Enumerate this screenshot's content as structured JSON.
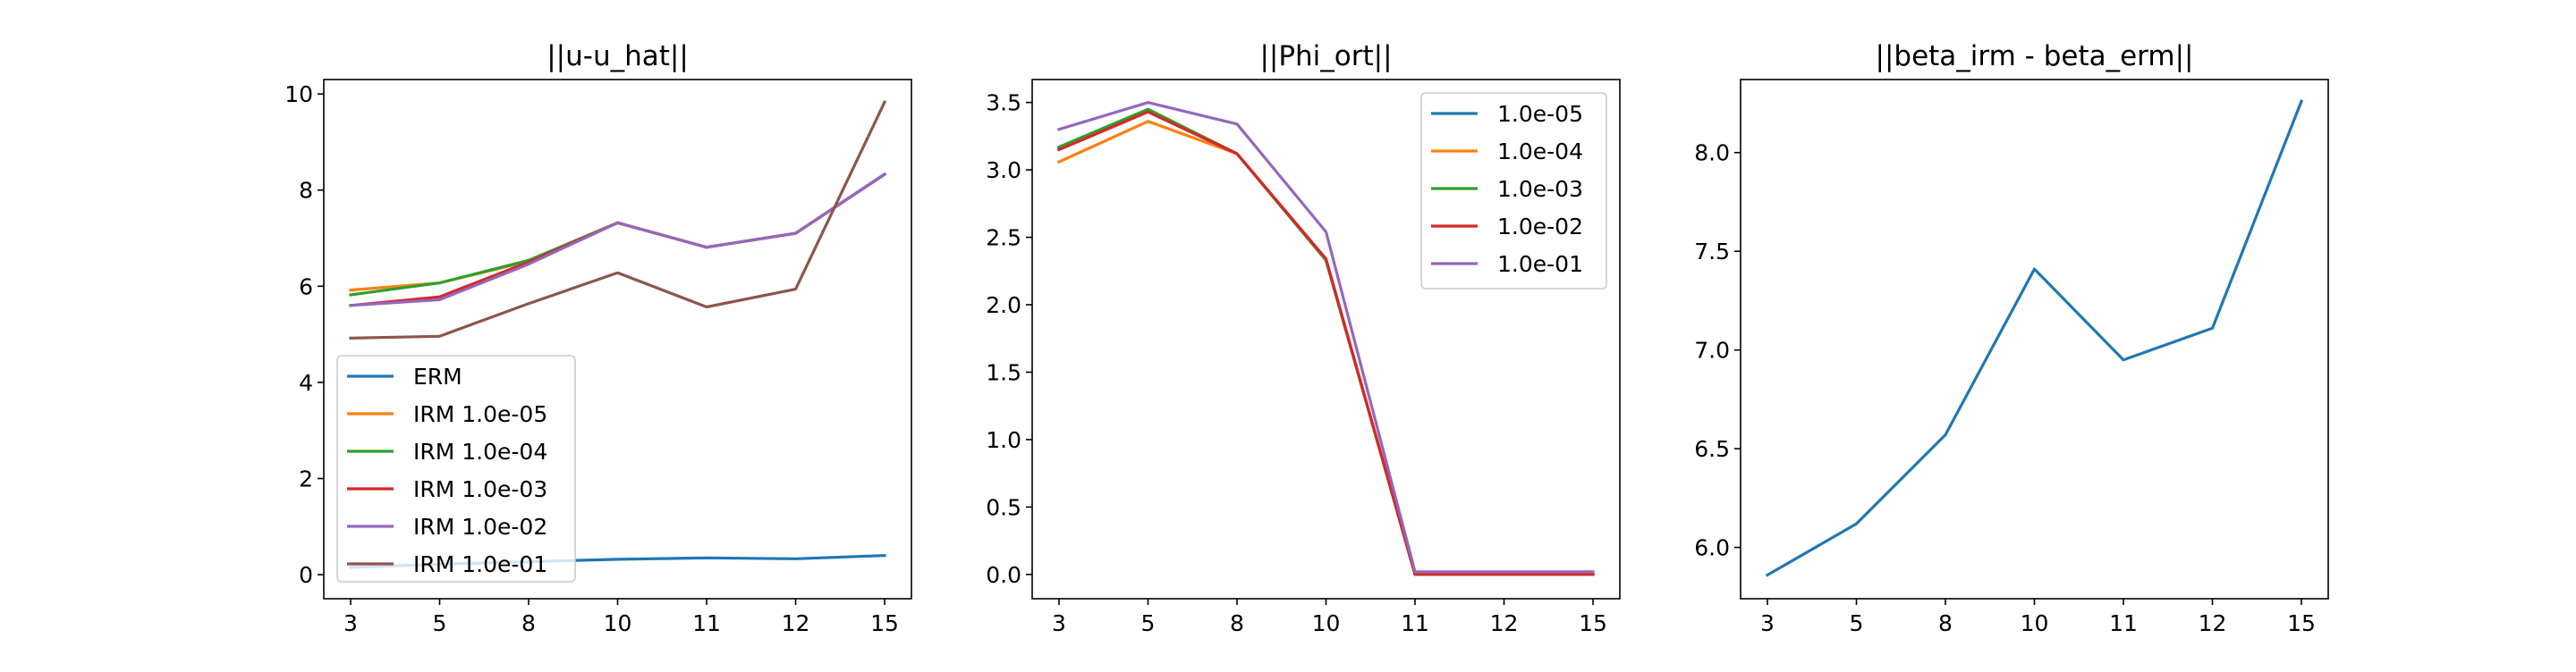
{
  "chart_data": [
    {
      "type": "line",
      "title": "||u-u_hat||",
      "xlabel": "",
      "ylabel": "",
      "categories": [
        "3",
        "5",
        "8",
        "10",
        "11",
        "12",
        "15"
      ],
      "ylim": [
        -0.5,
        10.3
      ],
      "yticks": [
        "0",
        "2",
        "4",
        "6",
        "8",
        "10"
      ],
      "legend_position": "lower-left",
      "series": [
        {
          "name": "ERM",
          "color": "#1f77b4",
          "values": [
            0.15,
            0.22,
            0.27,
            0.32,
            0.35,
            0.33,
            0.4
          ]
        },
        {
          "name": "IRM 1.0e-05",
          "color": "#ff7f0e",
          "values": [
            5.92,
            6.07,
            6.52,
            7.32,
            6.81,
            7.1,
            8.33
          ]
        },
        {
          "name": "IRM 1.0e-04",
          "color": "#2ca02c",
          "values": [
            5.82,
            6.07,
            6.54,
            7.32,
            6.81,
            7.1,
            8.33
          ]
        },
        {
          "name": "IRM 1.0e-03",
          "color": "#d62728",
          "values": [
            5.6,
            5.78,
            6.5,
            7.32,
            6.81,
            7.1,
            8.33
          ]
        },
        {
          "name": "IRM 1.0e-02",
          "color": "#9467bd",
          "values": [
            5.6,
            5.72,
            6.46,
            7.32,
            6.81,
            7.1,
            8.33
          ]
        },
        {
          "name": "IRM 1.0e-01",
          "color": "#8c564b",
          "values": [
            4.92,
            4.96,
            5.64,
            6.28,
            5.57,
            5.94,
            9.83
          ]
        }
      ]
    },
    {
      "type": "line",
      "title": "||Phi_ort||",
      "xlabel": "",
      "ylabel": "",
      "categories": [
        "3",
        "5",
        "8",
        "10",
        "11",
        "12",
        "15"
      ],
      "ylim": [
        -0.18,
        3.67
      ],
      "yticks": [
        "0.0",
        "0.5",
        "1.0",
        "1.5",
        "2.0",
        "2.5",
        "3.0",
        "3.5"
      ],
      "legend_position": "upper-right",
      "series": [
        {
          "name": "1.0e-05",
          "color": "#1f77b4",
          "values": [
            3.16,
            3.44,
            3.12,
            2.33,
            0.0,
            0.0,
            0.0
          ]
        },
        {
          "name": "1.0e-04",
          "color": "#ff7f0e",
          "values": [
            3.06,
            3.36,
            3.12,
            2.33,
            0.0,
            0.0,
            0.0
          ]
        },
        {
          "name": "1.0e-03",
          "color": "#2ca02c",
          "values": [
            3.17,
            3.45,
            3.12,
            2.33,
            0.0,
            0.0,
            0.0
          ]
        },
        {
          "name": "1.0e-02",
          "color": "#d62728",
          "values": [
            3.15,
            3.43,
            3.12,
            2.34,
            0.0,
            0.0,
            0.0
          ]
        },
        {
          "name": "1.0e-01",
          "color": "#9467bd",
          "values": [
            3.3,
            3.5,
            3.34,
            2.54,
            0.02,
            0.02,
            0.02
          ]
        }
      ]
    },
    {
      "type": "line",
      "title": "||beta_irm - beta_erm||",
      "xlabel": "",
      "ylabel": "",
      "categories": [
        "3",
        "5",
        "8",
        "10",
        "11",
        "12",
        "15"
      ],
      "ylim": [
        5.74,
        8.37
      ],
      "yticks": [
        "6.0",
        "6.5",
        "7.0",
        "7.5",
        "8.0"
      ],
      "series": [
        {
          "color": "#1f77b4",
          "values": [
            5.86,
            6.12,
            6.57,
            7.41,
            6.95,
            7.11,
            8.26
          ]
        }
      ]
    }
  ]
}
